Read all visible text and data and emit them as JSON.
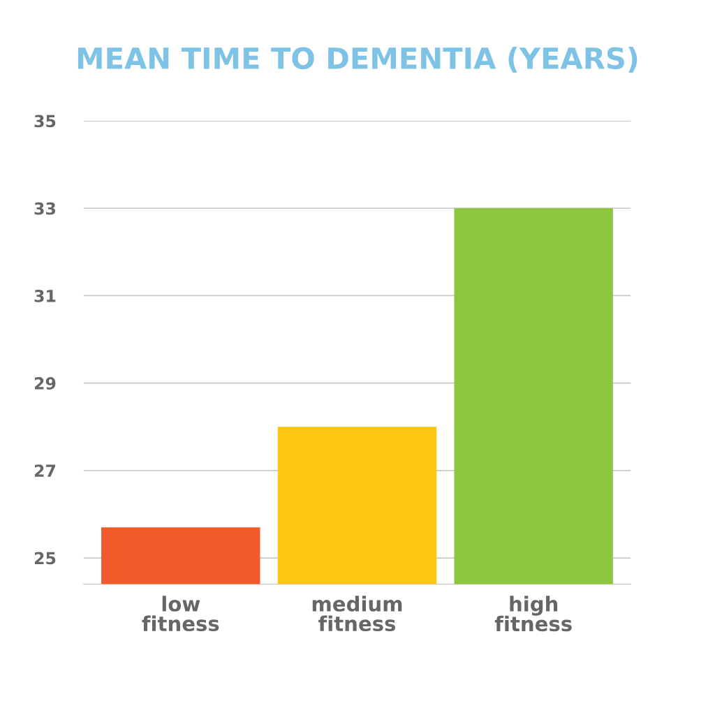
{
  "chart_data": {
    "type": "bar",
    "title": "MEAN TIME TO DEMENTIA (YEARS)",
    "categories": [
      "low\nfitness",
      "medium\nfitness",
      "high\nfitness"
    ],
    "values": [
      25.7,
      28.0,
      33.0
    ],
    "colors": [
      "#f15a2b",
      "#fdc70f",
      "#8dc63f"
    ],
    "ylim": [
      24.4,
      35
    ],
    "yticks": [
      25,
      27,
      29,
      31,
      33,
      35
    ],
    "grid": "y",
    "legend": false
  }
}
